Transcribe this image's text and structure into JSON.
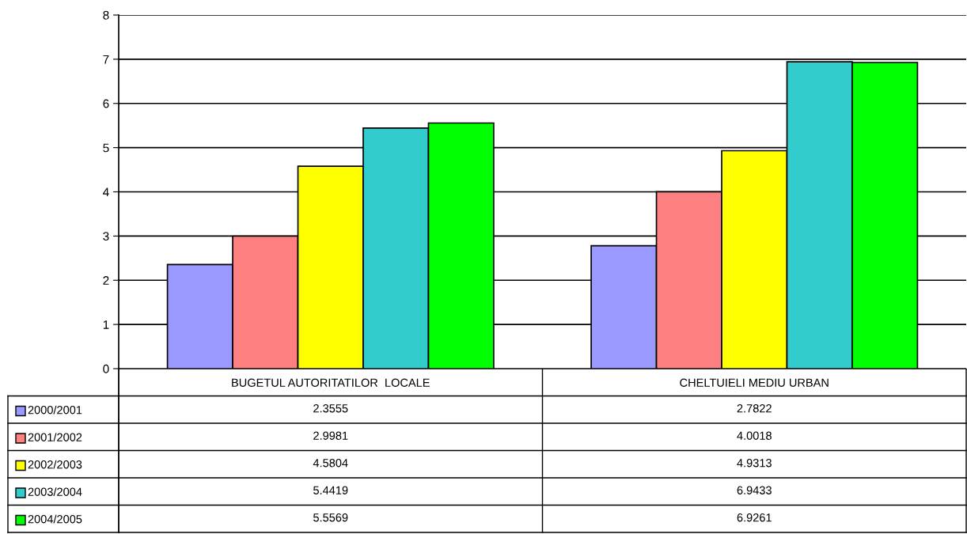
{
  "chart_data": {
    "type": "bar",
    "categories": [
      "BUGETUL AUTORITATILOR  LOCALE",
      "CHELTUIELI MEDIU URBAN"
    ],
    "series": [
      {
        "name": "2000/2001",
        "color": "#9999ff",
        "values": [
          2.3555,
          2.7822
        ]
      },
      {
        "name": "2001/2002",
        "color": "#ff8080",
        "values": [
          2.9981,
          4.0018
        ]
      },
      {
        "name": "2002/2003",
        "color": "#ffff00",
        "values": [
          4.5804,
          4.9313
        ]
      },
      {
        "name": "2003/2004",
        "color": "#33cccc",
        "values": [
          5.4419,
          6.9433
        ]
      },
      {
        "name": "2004/2005",
        "color": "#00ff00",
        "values": [
          5.5569,
          6.9261
        ]
      }
    ],
    "ylim": [
      0,
      8
    ],
    "yticks": [
      0,
      1,
      2,
      3,
      4,
      5,
      6,
      7,
      8
    ],
    "grid": "y",
    "legend": "bottom left",
    "data_labels": true
  }
}
